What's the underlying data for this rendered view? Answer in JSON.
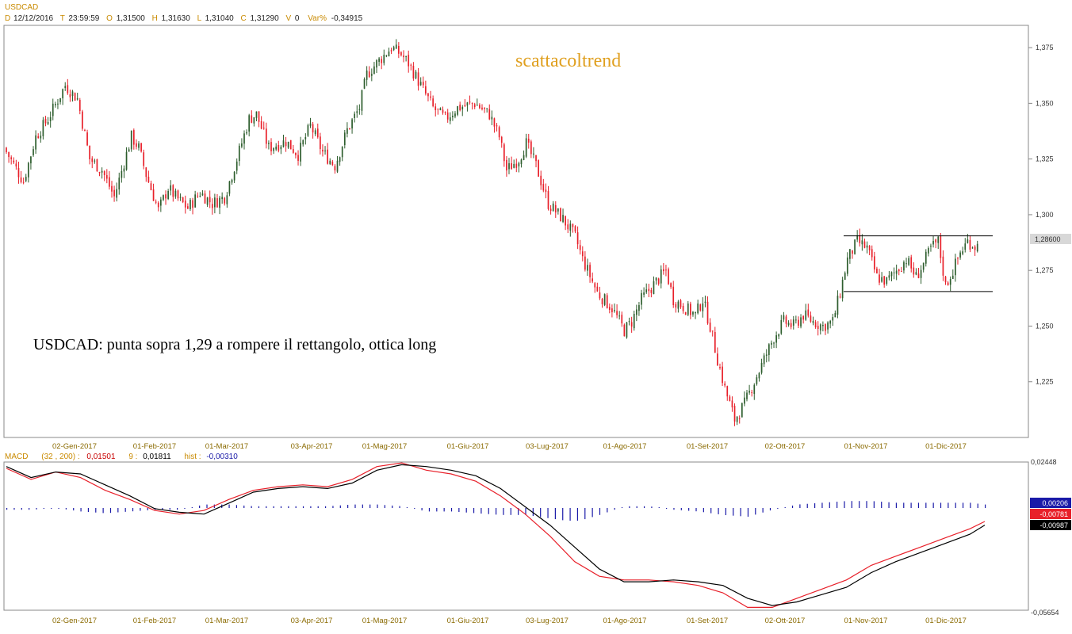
{
  "header": {
    "symbol": "USDCAD",
    "d_label": "D",
    "date": "12/12/2016",
    "t_label": "T",
    "time": "23:59:59",
    "o_label": "O",
    "open": "1,31500",
    "h_label": "H",
    "high": "1,31630",
    "l_label": "L",
    "low": "1,31040",
    "c_label": "C",
    "close": "1,31290",
    "v_label": "V",
    "volume": "0",
    "var_label": "Var%",
    "var": "-0,34915"
  },
  "watermark": "scattacoltrend",
  "annotation": "USDCAD: punta sopra 1,29 a rompere il rettangolo, ottica long",
  "macd_header": {
    "name": "MACD",
    "params": "(32 , 200) :",
    "macd_value": "0,01501",
    "signal_label": "9 :",
    "signal_value": "0,01811",
    "hist_label": "hist :",
    "hist_value": "-0,00310"
  },
  "colors": {
    "up": "#2e5e2e",
    "down": "#e8202a",
    "macd": "#000000",
    "signal": "#e8202a",
    "hist": "#1a1aa8",
    "date_text": "#8a6a00",
    "header_text": "#c98a00"
  },
  "chart_data": [
    {
      "type": "candlestick",
      "title": "USDCAD",
      "ylim": [
        1.2,
        1.385
      ],
      "y_ticks": [
        "1,375",
        "1,350",
        "1,325",
        "1,300",
        "1,275",
        "1,250",
        "1,225"
      ],
      "y_tick_values": [
        1.375,
        1.35,
        1.325,
        1.3,
        1.275,
        1.25,
        1.225
      ],
      "x_tick_labels": [
        "02-Gen-2017",
        "01-Feb-2017",
        "01-Mar-2017",
        "03-Apr-2017",
        "01-Mag-2017",
        "01-Giu-2017",
        "03-Lug-2017",
        "01-Ago-2017",
        "01-Set-2017",
        "02-Ott-2017",
        "01-Nov-2017",
        "01-Dic-2017"
      ],
      "last_price_label": "1,28600",
      "last_price": 1.286,
      "rectangle": {
        "top": 1.2905,
        "bottom": 1.2655,
        "from": "01-Nov-2017",
        "to": "end"
      },
      "path_points": [
        [
          0,
          1.33
        ],
        [
          8,
          1.315
        ],
        [
          13,
          1.335
        ],
        [
          18,
          1.343
        ],
        [
          25,
          1.358
        ],
        [
          30,
          1.352
        ],
        [
          35,
          1.325
        ],
        [
          40,
          1.32
        ],
        [
          45,
          1.308
        ],
        [
          52,
          1.335
        ],
        [
          55,
          1.33
        ],
        [
          58,
          1.318
        ],
        [
          63,
          1.302
        ],
        [
          67,
          1.312
        ],
        [
          70,
          1.308
        ],
        [
          75,
          1.303
        ],
        [
          80,
          1.31
        ],
        [
          85,
          1.305
        ],
        [
          90,
          1.308
        ],
        [
          95,
          1.325
        ],
        [
          100,
          1.343
        ],
        [
          103,
          1.345
        ],
        [
          108,
          1.33
        ],
        [
          115,
          1.333
        ],
        [
          120,
          1.327
        ],
        [
          125,
          1.34
        ],
        [
          130,
          1.328
        ],
        [
          135,
          1.322
        ],
        [
          140,
          1.338
        ],
        [
          145,
          1.348
        ],
        [
          148,
          1.363
        ],
        [
          152,
          1.368
        ],
        [
          158,
          1.375
        ],
        [
          162,
          1.372
        ],
        [
          165,
          1.368
        ],
        [
          170,
          1.358
        ],
        [
          175,
          1.348
        ],
        [
          180,
          1.343
        ],
        [
          185,
          1.348
        ],
        [
          192,
          1.35
        ],
        [
          198,
          1.345
        ],
        [
          202,
          1.335
        ],
        [
          205,
          1.32
        ],
        [
          210,
          1.325
        ],
        [
          213,
          1.332
        ],
        [
          217,
          1.322
        ],
        [
          222,
          1.305
        ],
        [
          228,
          1.298
        ],
        [
          233,
          1.29
        ],
        [
          236,
          1.28
        ],
        [
          242,
          1.265
        ],
        [
          248,
          1.258
        ],
        [
          253,
          1.248
        ],
        [
          256,
          1.252
        ],
        [
          260,
          1.262
        ],
        [
          266,
          1.27
        ],
        [
          270,
          1.275
        ],
        [
          273,
          1.262
        ],
        [
          278,
          1.258
        ],
        [
          282,
          1.255
        ],
        [
          285,
          1.262
        ],
        [
          288,
          1.25
        ],
        [
          291,
          1.235
        ],
        [
          294,
          1.222
        ],
        [
          298,
          1.208
        ],
        [
          302,
          1.215
        ],
        [
          306,
          1.225
        ],
        [
          310,
          1.235
        ],
        [
          314,
          1.245
        ],
        [
          318,
          1.252
        ],
        [
          322,
          1.25
        ],
        [
          326,
          1.255
        ],
        [
          330,
          1.252
        ],
        [
          334,
          1.25
        ],
        [
          338,
          1.252
        ],
        [
          341,
          1.265
        ],
        [
          344,
          1.28
        ],
        [
          348,
          1.288
        ],
        [
          352,
          1.285
        ],
        [
          356,
          1.272
        ],
        [
          360,
          1.27
        ],
        [
          364,
          1.275
        ],
        [
          368,
          1.28
        ],
        [
          372,
          1.272
        ],
        [
          375,
          1.278
        ],
        [
          378,
          1.285
        ],
        [
          381,
          1.288
        ],
        [
          384,
          1.268
        ],
        [
          387,
          1.275
        ],
        [
          390,
          1.283
        ],
        [
          393,
          1.288
        ],
        [
          396,
          1.286
        ]
      ]
    },
    {
      "type": "line",
      "title": "MACD",
      "ylim": [
        -0.05654,
        0.02448
      ],
      "y_ticks": [
        "0,02448",
        "-0,05654"
      ],
      "y_tick_values": [
        0.02448,
        -0.05654
      ],
      "value_boxes": [
        {
          "label": "0,00206",
          "value": 0.00206,
          "color": "#1a1aa8"
        },
        {
          "label": "-0,00781",
          "value": -0.00781,
          "color": "#e8202a"
        },
        {
          "label": "-0,00987",
          "value": -0.00987,
          "color": "#000000"
        }
      ],
      "series": [
        {
          "color": "#000000",
          "points": [
            [
              0,
              0.022
            ],
            [
              10,
              0.016
            ],
            [
              20,
              0.019
            ],
            [
              30,
              0.018
            ],
            [
              40,
              0.012
            ],
            [
              50,
              0.006
            ],
            [
              60,
              -0.001
            ],
            [
              70,
              -0.003
            ],
            [
              80,
              -0.004
            ],
            [
              90,
              0.002
            ],
            [
              100,
              0.008
            ],
            [
              110,
              0.01
            ],
            [
              120,
              0.011
            ],
            [
              130,
              0.01
            ],
            [
              140,
              0.013
            ],
            [
              150,
              0.02
            ],
            [
              160,
              0.023
            ],
            [
              170,
              0.022
            ],
            [
              180,
              0.02
            ],
            [
              190,
              0.017
            ],
            [
              200,
              0.01
            ],
            [
              210,
              0.0
            ],
            [
              220,
              -0.01
            ],
            [
              230,
              -0.022
            ],
            [
              240,
              -0.034
            ],
            [
              250,
              -0.041
            ],
            [
              260,
              -0.041
            ],
            [
              270,
              -0.04
            ],
            [
              280,
              -0.041
            ],
            [
              290,
              -0.043
            ],
            [
              300,
              -0.05
            ],
            [
              310,
              -0.054
            ],
            [
              320,
              -0.052
            ],
            [
              330,
              -0.048
            ],
            [
              340,
              -0.044
            ],
            [
              350,
              -0.036
            ],
            [
              360,
              -0.03
            ],
            [
              370,
              -0.025
            ],
            [
              380,
              -0.02
            ],
            [
              390,
              -0.015
            ],
            [
              396,
              -0.01
            ]
          ]
        },
        {
          "color": "#e8202a",
          "points": [
            [
              0,
              0.021
            ],
            [
              10,
              0.015
            ],
            [
              20,
              0.019
            ],
            [
              30,
              0.016
            ],
            [
              40,
              0.009
            ],
            [
              50,
              0.004
            ],
            [
              60,
              -0.002
            ],
            [
              70,
              -0.004
            ],
            [
              80,
              -0.002
            ],
            [
              90,
              0.004
            ],
            [
              100,
              0.009
            ],
            [
              110,
              0.011
            ],
            [
              120,
              0.012
            ],
            [
              130,
              0.011
            ],
            [
              140,
              0.015
            ],
            [
              150,
              0.022
            ],
            [
              160,
              0.024
            ],
            [
              170,
              0.02
            ],
            [
              180,
              0.018
            ],
            [
              190,
              0.014
            ],
            [
              200,
              0.006
            ],
            [
              210,
              -0.004
            ],
            [
              220,
              -0.016
            ],
            [
              230,
              -0.03
            ],
            [
              240,
              -0.038
            ],
            [
              250,
              -0.04
            ],
            [
              260,
              -0.04
            ],
            [
              270,
              -0.041
            ],
            [
              280,
              -0.043
            ],
            [
              290,
              -0.047
            ],
            [
              300,
              -0.055
            ],
            [
              310,
              -0.055
            ],
            [
              320,
              -0.05
            ],
            [
              330,
              -0.045
            ],
            [
              340,
              -0.04
            ],
            [
              350,
              -0.032
            ],
            [
              360,
              -0.027
            ],
            [
              370,
              -0.022
            ],
            [
              380,
              -0.017
            ],
            [
              390,
              -0.012
            ],
            [
              396,
              -0.008
            ]
          ]
        }
      ]
    }
  ]
}
